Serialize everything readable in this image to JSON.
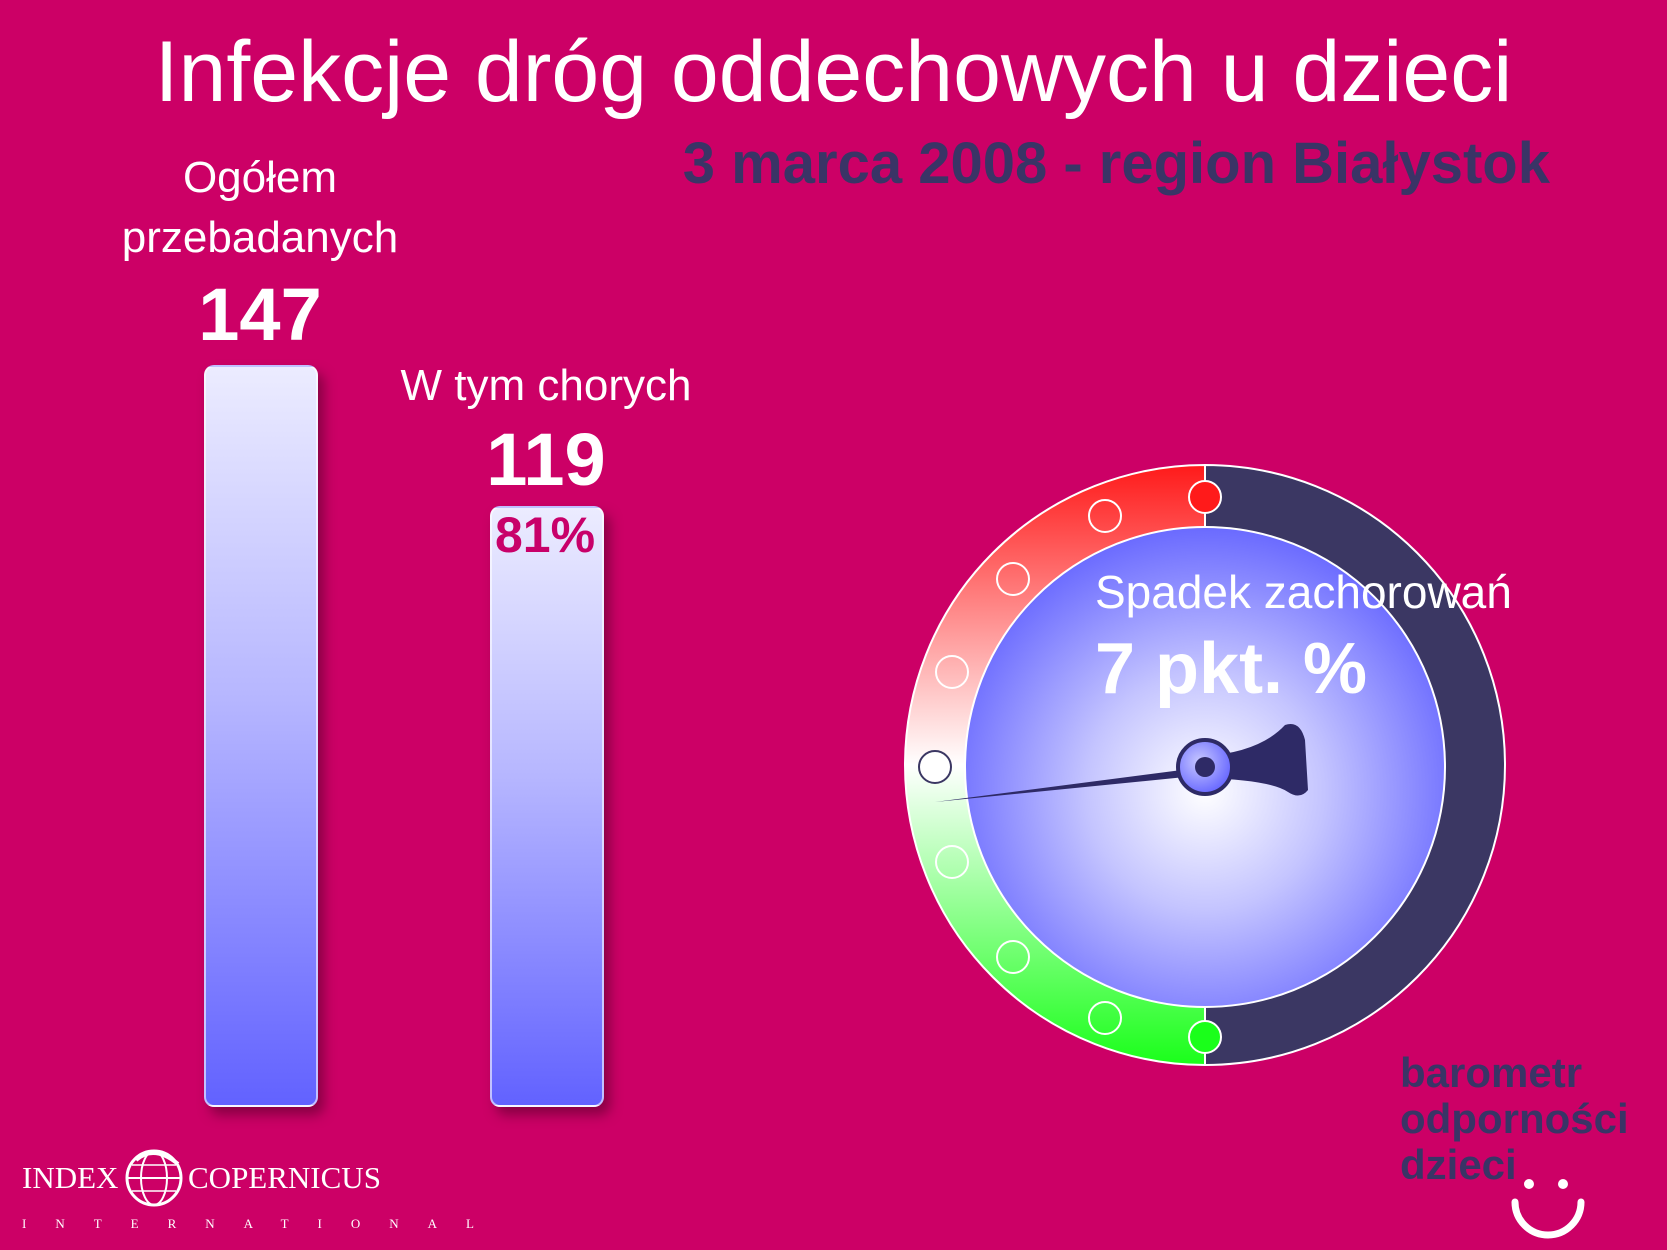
{
  "title": "Infekcje dróg oddechowych u dzieci",
  "subtitle": "3 marca 2008 - region Białystok",
  "chart_data": {
    "type": "bar",
    "categories": [
      "Ogółem przebadanych",
      "W tym chorych"
    ],
    "values": [
      147,
      119
    ],
    "category_lines": [
      [
        "Ogółem",
        "przebadanych"
      ],
      [
        "W tym chorych"
      ]
    ],
    "value_labels": [
      "147",
      "119"
    ],
    "bar_annotations": [
      "",
      "81%"
    ],
    "ylim": [
      0,
      147
    ]
  },
  "gauge": {
    "label": "Spadek zachorowań",
    "value_text": "7 pkt. %",
    "value": 7,
    "colors": {
      "ring_red": "#ff1a1a",
      "ring_green": "#1aff1a",
      "ring_dark": "#3b3763",
      "dial": "#6a6aff",
      "needle": "#2e2a66"
    }
  },
  "brand": {
    "lines": [
      "barometr",
      "odporności",
      "dzieci"
    ],
    "icon": "smiley-icon"
  },
  "logo": {
    "left": "INDEX",
    "right": "COPERNICUS",
    "sub": "INTERNATIONAL",
    "icon": "globe-icon"
  },
  "colors": {
    "background": "#cc0066",
    "subtitle": "#3a3466",
    "bar_top": "#ececff",
    "bar_bottom": "#6262ff",
    "percent": "#c8006a"
  }
}
